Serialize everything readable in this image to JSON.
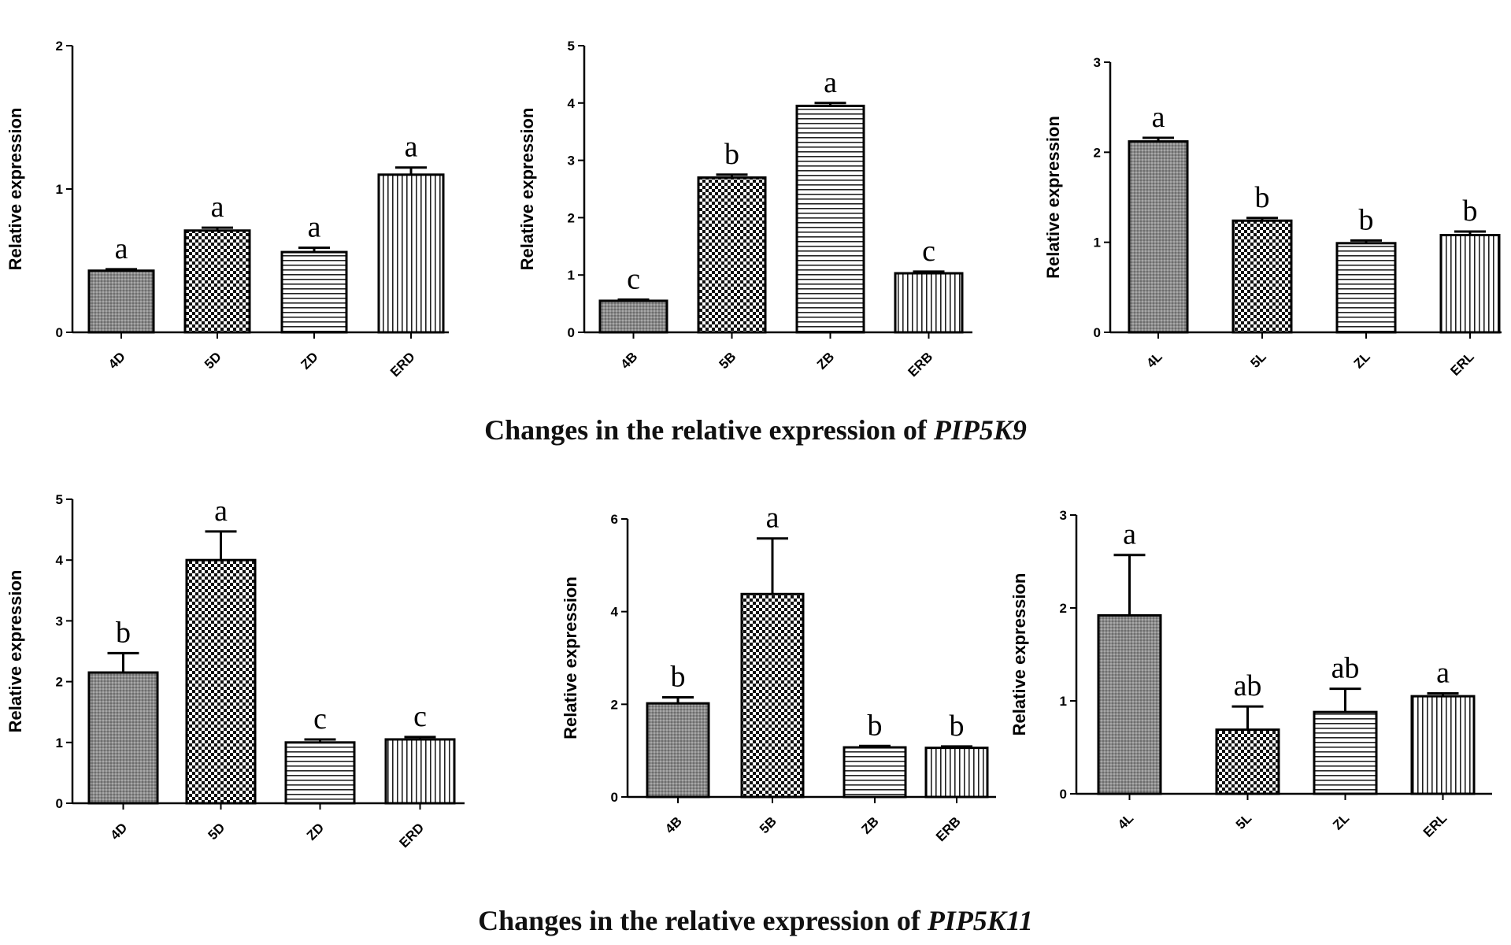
{
  "captions": [
    {
      "prefix": "Changes in the relative expression of ",
      "gene": "PIP5K9"
    },
    {
      "prefix": "Changes in the relative expression of ",
      "gene": "PIP5K11"
    }
  ],
  "chart_data": [
    {
      "type": "bar",
      "ylabel": "Relative expression",
      "ylim": [
        0,
        2
      ],
      "yticks": [
        "0",
        "1",
        "2"
      ],
      "categories": [
        "4D",
        "5D",
        "ZD",
        "ERD"
      ],
      "values": [
        0.43,
        0.71,
        0.56,
        1.1
      ],
      "errors": [
        0.01,
        0.02,
        0.03,
        0.05
      ],
      "letters": [
        "a",
        "a",
        "a",
        "a"
      ]
    },
    {
      "type": "bar",
      "ylabel": "Relative expression",
      "ylim": [
        0,
        5
      ],
      "yticks": [
        "0",
        "1",
        "2",
        "3",
        "4",
        "5"
      ],
      "categories": [
        "4B",
        "5B",
        "ZB",
        "ERB"
      ],
      "values": [
        0.55,
        2.7,
        3.95,
        1.03
      ],
      "errors": [
        0.02,
        0.05,
        0.05,
        0.03
      ],
      "letters": [
        "c",
        "b",
        "a",
        "c"
      ]
    },
    {
      "type": "bar",
      "ylabel": "Relative expression",
      "ylim": [
        0,
        3
      ],
      "yticks": [
        "0",
        "1",
        "2",
        "3"
      ],
      "categories": [
        "4L",
        "5L",
        "ZL",
        "ERL"
      ],
      "values": [
        2.12,
        1.24,
        0.99,
        1.08
      ],
      "errors": [
        0.04,
        0.03,
        0.03,
        0.04
      ],
      "letters": [
        "a",
        "b",
        "b",
        "b"
      ]
    },
    {
      "type": "bar",
      "ylabel": "Relative expression",
      "ylim": [
        0,
        5
      ],
      "yticks": [
        "0",
        "1",
        "2",
        "3",
        "4",
        "5"
      ],
      "categories": [
        "4D",
        "5D",
        "ZD",
        "ERD"
      ],
      "values": [
        2.15,
        4.0,
        1.0,
        1.05
      ],
      "errors": [
        0.32,
        0.47,
        0.05,
        0.04
      ],
      "letters": [
        "b",
        "a",
        "c",
        "c"
      ]
    },
    {
      "type": "bar",
      "ylabel": "Relative expression",
      "ylim": [
        0,
        6
      ],
      "yticks": [
        "0",
        "2",
        "4",
        "6"
      ],
      "categories": [
        "4B",
        "5B",
        "ZB",
        "ERB"
      ],
      "values": [
        2.02,
        4.38,
        1.07,
        1.06
      ],
      "errors": [
        0.13,
        1.2,
        0.03,
        0.03
      ],
      "letters": [
        "b",
        "a",
        "b",
        "b"
      ]
    },
    {
      "type": "bar",
      "ylabel": "Relative expression",
      "ylim": [
        0,
        3
      ],
      "yticks": [
        "0",
        "1",
        "2",
        "3"
      ],
      "categories": [
        "4L",
        "5L",
        "ZL",
        "ERL"
      ],
      "values": [
        1.92,
        0.69,
        0.88,
        1.05
      ],
      "errors": [
        0.65,
        0.25,
        0.25,
        0.03
      ],
      "letters": [
        "a",
        "ab",
        "ab",
        "a"
      ]
    }
  ]
}
